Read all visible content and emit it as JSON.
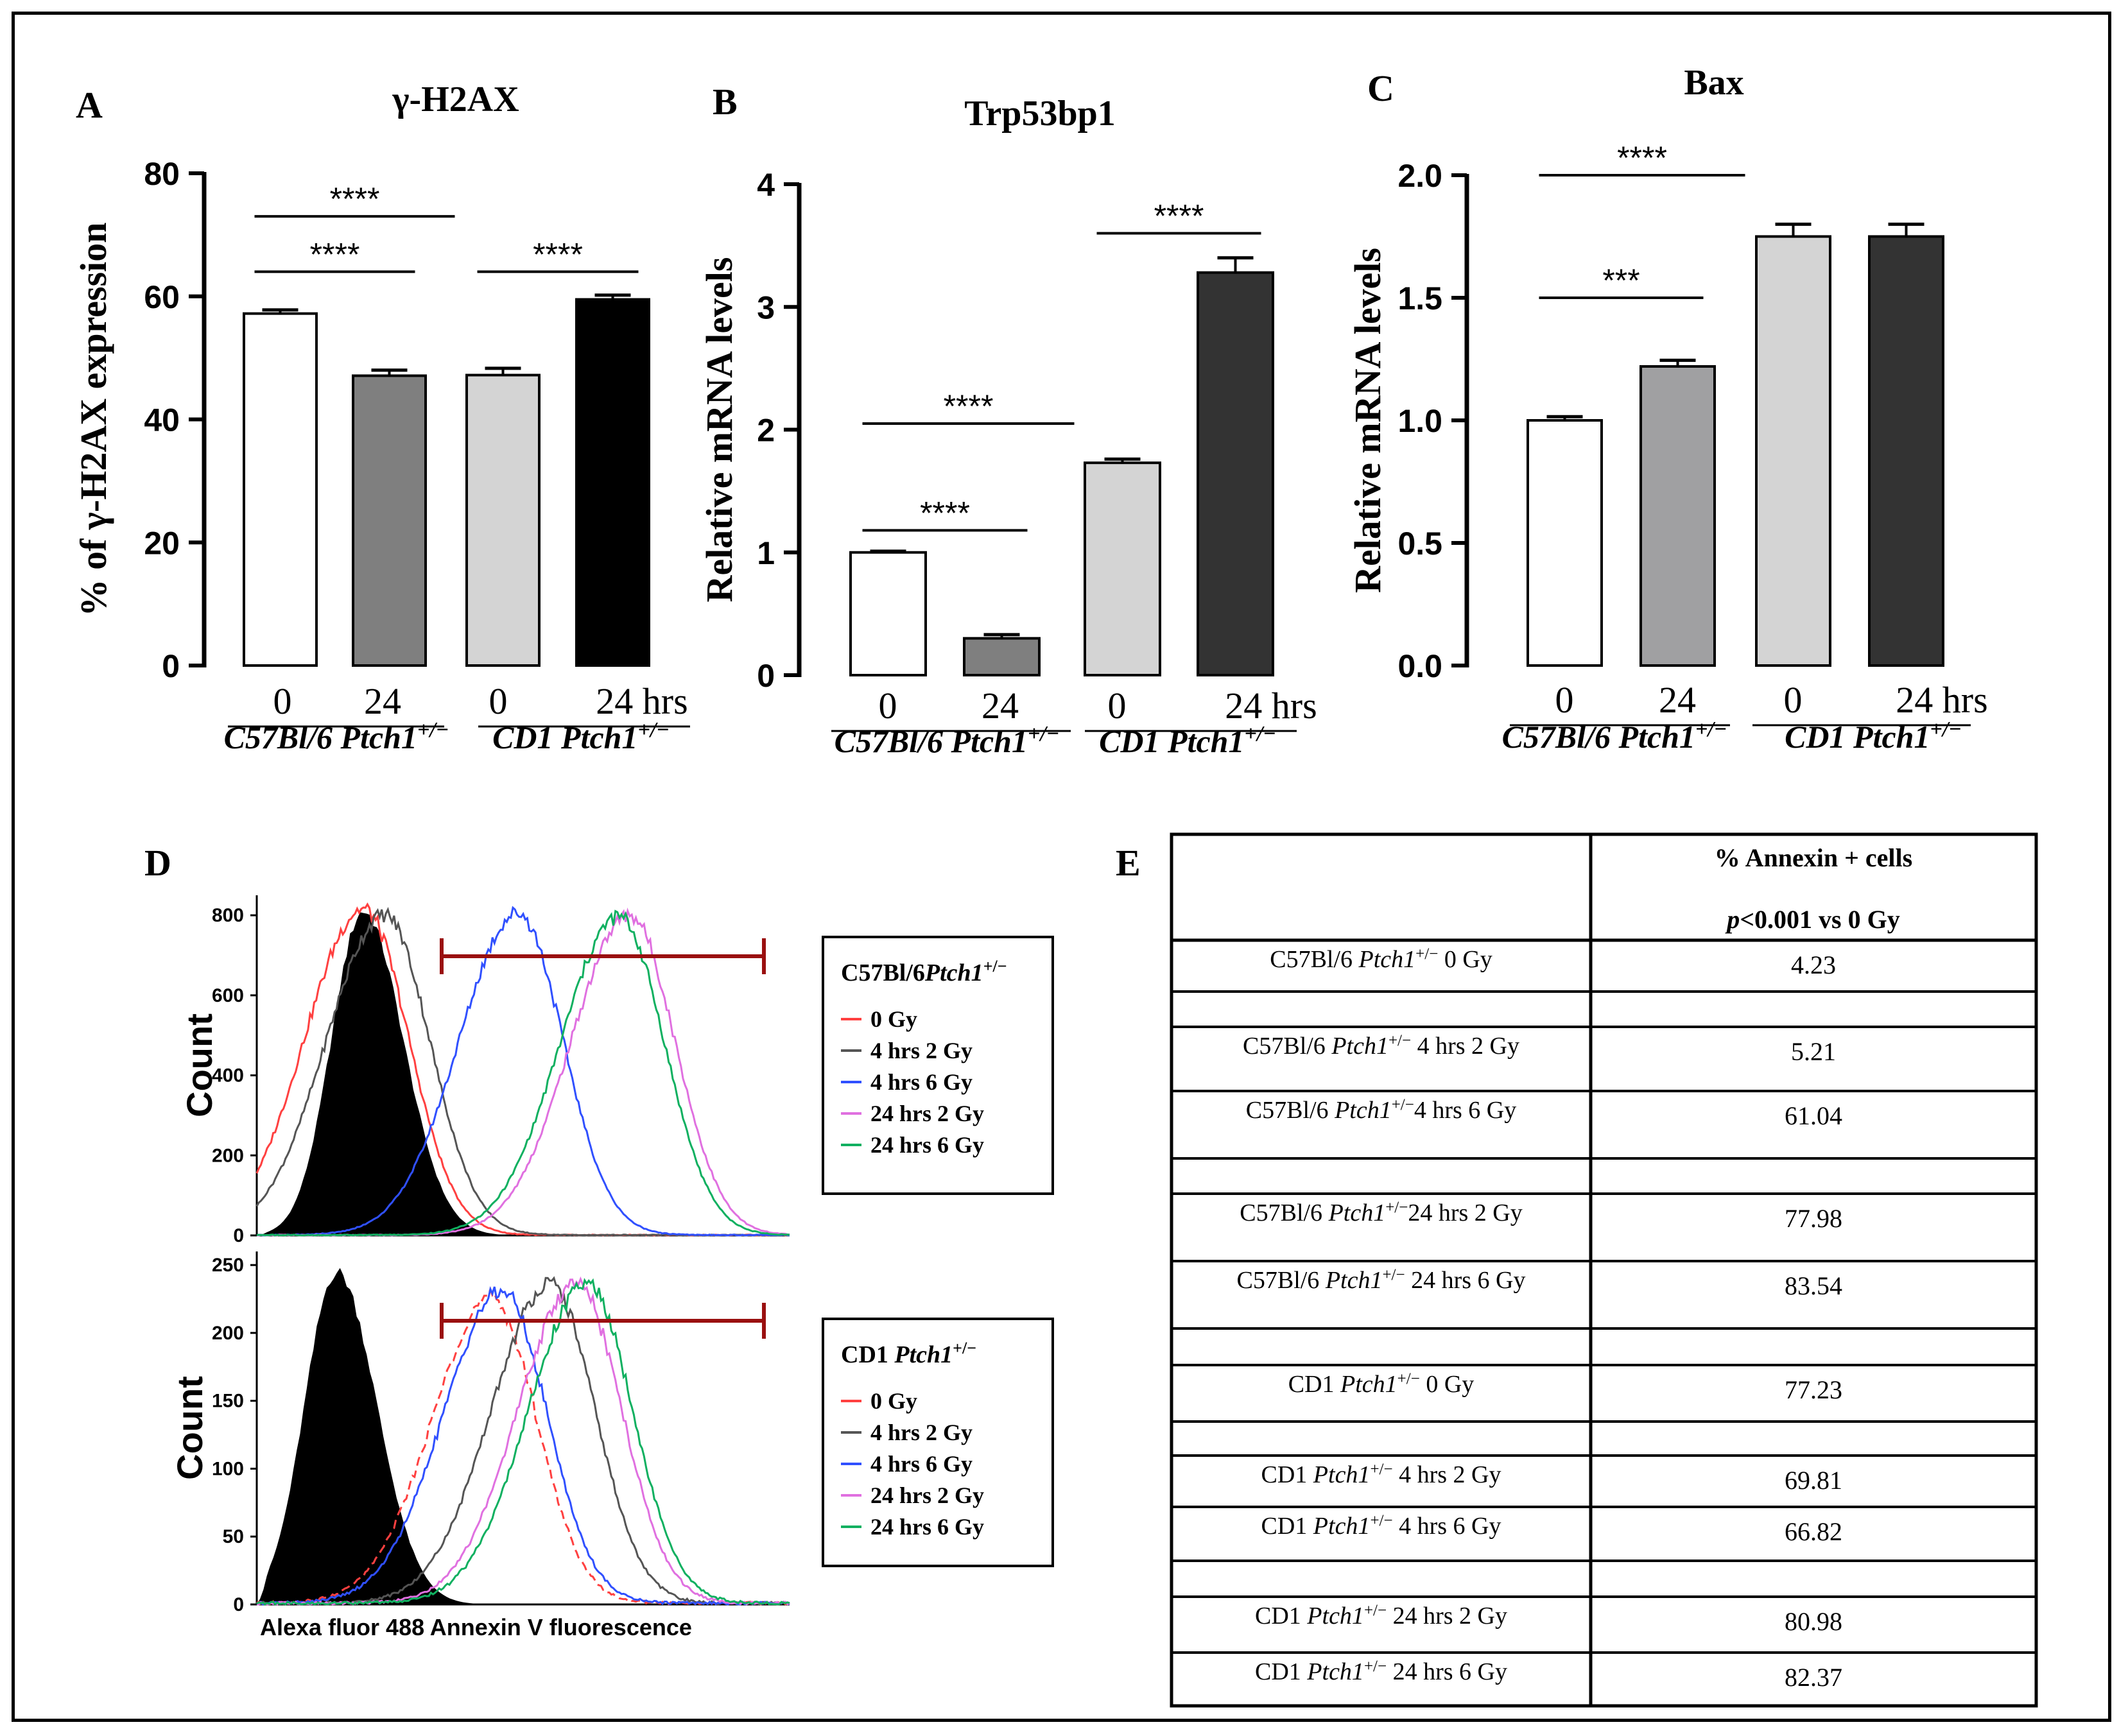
{
  "chart_data": [
    {
      "panel": "A",
      "type": "bar",
      "title": "γ-H2AX",
      "ylabel": "% of γ-H2AX expression",
      "ylim": [
        0,
        80
      ],
      "yticks": [
        "0",
        "20",
        "40",
        "60",
        "80"
      ],
      "categories": [
        "0",
        "24",
        "0",
        "24 hrs"
      ],
      "groups": [
        {
          "label": "C57Bl/6",
          "gene": "Ptch1",
          "sup": "+/−"
        },
        {
          "label": "CD1",
          "gene": "Ptch1",
          "sup": "+/−"
        }
      ],
      "values": [
        57.2,
        47.1,
        47.2,
        59.5
      ],
      "errors": [
        0.6,
        0.9,
        1.1,
        0.7
      ],
      "colors": [
        "#ffffff",
        "#7f7f7f",
        "#d4d4d4",
        "#000000"
      ],
      "significance": [
        {
          "from": 0,
          "to": 2,
          "label": "****",
          "y": 73
        },
        {
          "from": 0,
          "to": 1,
          "label": "****",
          "y": 64
        },
        {
          "from": 2,
          "to": 3,
          "label": "****",
          "y": 64
        }
      ]
    },
    {
      "panel": "B",
      "type": "bar",
      "title": "Trp53bp1",
      "ylabel": "Relative mRNA levels",
      "ylim": [
        0,
        4
      ],
      "yticks": [
        "0",
        "1",
        "2",
        "3",
        "4"
      ],
      "categories": [
        "0",
        "24",
        "0",
        "24 hrs"
      ],
      "groups": [
        {
          "label": "C57Bl/6",
          "gene": "Ptch1",
          "sup": "+/−"
        },
        {
          "label": "CD1",
          "gene": "Ptch1",
          "sup": "+/−"
        }
      ],
      "values": [
        1.0,
        0.3,
        1.73,
        3.28
      ],
      "errors": [
        0.01,
        0.03,
        0.03,
        0.12
      ],
      "colors": [
        "#ffffff",
        "#7f7f7f",
        "#d4d4d4",
        "#333333"
      ],
      "significance": [
        {
          "from": 0,
          "to": 2,
          "label": "****",
          "y": 2.05
        },
        {
          "from": 0,
          "to": 1,
          "label": "****",
          "y": 1.18
        },
        {
          "from": 2,
          "to": 3,
          "label": "****",
          "y": 3.6
        }
      ]
    },
    {
      "panel": "C",
      "type": "bar",
      "title": "Bax",
      "ylabel": "Relative mRNA levels",
      "ylim": [
        0,
        2.0
      ],
      "yticks": [
        "0.0",
        "0.5",
        "1.0",
        "1.5",
        "2.0"
      ],
      "categories": [
        "0",
        "24",
        "0",
        "24 hrs"
      ],
      "groups": [
        {
          "label": "C57Bl/6",
          "gene": "Ptch1",
          "sup": "+/−"
        },
        {
          "label": "CD1",
          "gene": "Ptch1",
          "sup": "+/−"
        }
      ],
      "values": [
        1.0,
        1.22,
        1.75,
        1.75
      ],
      "errors": [
        0.015,
        0.025,
        0.05,
        0.05
      ],
      "colors": [
        "#ffffff",
        "#a0a0a2",
        "#d4d4d4",
        "#333333"
      ],
      "significance": [
        {
          "from": 0,
          "to": 2,
          "label": "****",
          "y": 2.0
        },
        {
          "from": 0,
          "to": 1,
          "label": "***",
          "y": 1.5
        }
      ]
    },
    {
      "panel": "D",
      "type": "line",
      "subtype": "flow-cytometry histogram",
      "xlabel": "Alexa fluor 488 Annexin V fluorescence",
      "ylabel": "Count",
      "subplots": [
        {
          "ylim": [
            0,
            850
          ],
          "yticks": [
            "0",
            "200",
            "400",
            "600",
            "800"
          ],
          "legend_title": "C57Bl/6",
          "legend_gene": "Ptch1",
          "legend_sup": "+/−",
          "filled_control_peak": {
            "x": 0.2,
            "count": 810
          },
          "series": [
            {
              "name": "0 Gy",
              "color": "#ff4040",
              "peak_x": 0.2,
              "peak_count": 815
            },
            {
              "name": "4 hrs 2 Gy",
              "color": "#555555",
              "peak_x": 0.24,
              "peak_count": 800
            },
            {
              "name": "4 hrs 6 Gy",
              "color": "#3050ff",
              "peak_x": 0.49,
              "peak_count": 805
            },
            {
              "name": "24 hrs 2 Gy",
              "color": "#e070e0",
              "peak_x": 0.7,
              "peak_count": 800
            },
            {
              "name": "24 hrs 6 Gy",
              "color": "#10b060",
              "peak_x": 0.68,
              "peak_count": 795
            }
          ]
        },
        {
          "ylim": [
            0,
            260
          ],
          "yticks": [
            "0",
            "50",
            "100",
            "150",
            "200",
            "250"
          ],
          "legend_title": "CD1",
          "legend_gene": "Ptch1",
          "legend_sup": "+/−",
          "filled_control_peak": {
            "x": 0.15,
            "count": 245
          },
          "series": [
            {
              "name": "0 Gy",
              "color": "#ff4040",
              "peak_x": 0.44,
              "peak_count": 225,
              "dashed": true
            },
            {
              "name": "4 hrs 2 Gy",
              "color": "#555555",
              "peak_x": 0.55,
              "peak_count": 235
            },
            {
              "name": "4 hrs 6 Gy",
              "color": "#3050ff",
              "peak_x": 0.46,
              "peak_count": 230
            },
            {
              "name": "24 hrs 2 Gy",
              "color": "#e070e0",
              "peak_x": 0.6,
              "peak_count": 235
            },
            {
              "name": "24 hrs 6 Gy",
              "color": "#10b060",
              "peak_x": 0.62,
              "peak_count": 235
            }
          ]
        }
      ]
    },
    {
      "panel": "E",
      "type": "table",
      "header_line1": "% Annexin + cells",
      "header_p": "p",
      "header_rest": "<0.001 vs 0 Gy",
      "rows": [
        {
          "strain": "C57Bl/6 ",
          "gene": "Ptch1",
          "sup": "+/−",
          "cond": "   0 Gy",
          "value": "4.23"
        },
        {
          "strain": "",
          "gene": "",
          "sup": "",
          "cond": "",
          "value": ""
        },
        {
          "strain": "C57Bl/6 ",
          "gene": "Ptch1",
          "sup": "+/−",
          "cond": " 4 hrs 2 Gy",
          "value": "5.21"
        },
        {
          "strain": "C57Bl/6 ",
          "gene": "Ptch1",
          "sup": "+/−",
          "cond": "4 hrs 6 Gy",
          "value": "61.04"
        },
        {
          "strain": "",
          "gene": "",
          "sup": "",
          "cond": "",
          "value": ""
        },
        {
          "strain": "C57Bl/6 ",
          "gene": "Ptch1",
          "sup": "+/−",
          "cond": "24 hrs 2 Gy",
          "value": "77.98"
        },
        {
          "strain": "C57Bl/6 ",
          "gene": "Ptch1",
          "sup": "+/−",
          "cond": " 24 hrs 6 Gy",
          "value": "83.54"
        },
        {
          "strain": "",
          "gene": "",
          "sup": "",
          "cond": "",
          "value": ""
        },
        {
          "strain": "CD1 ",
          "gene": "Ptch1",
          "sup": "+/−",
          "cond": " 0 Gy",
          "value": "77.23"
        },
        {
          "strain": "",
          "gene": "",
          "sup": "",
          "cond": "",
          "value": ""
        },
        {
          "strain": "CD1 ",
          "gene": "Ptch1",
          "sup": "+/−",
          "cond": " 4 hrs 2 Gy",
          "value": "69.81"
        },
        {
          "strain": "CD1 ",
          "gene": "Ptch1",
          "sup": "+/−",
          "cond": " 4 hrs 6 Gy",
          "value": "66.82"
        },
        {
          "strain": "",
          "gene": "",
          "sup": "",
          "cond": "",
          "value": ""
        },
        {
          "strain": "CD1 ",
          "gene": "Ptch1",
          "sup": "+/−",
          "cond": " 24 hrs 2 Gy",
          "value": "80.98"
        },
        {
          "strain": "CD1 ",
          "gene": "Ptch1",
          "sup": "+/−",
          "cond": " 24 hrs 6 Gy",
          "value": "82.37"
        }
      ]
    }
  ]
}
